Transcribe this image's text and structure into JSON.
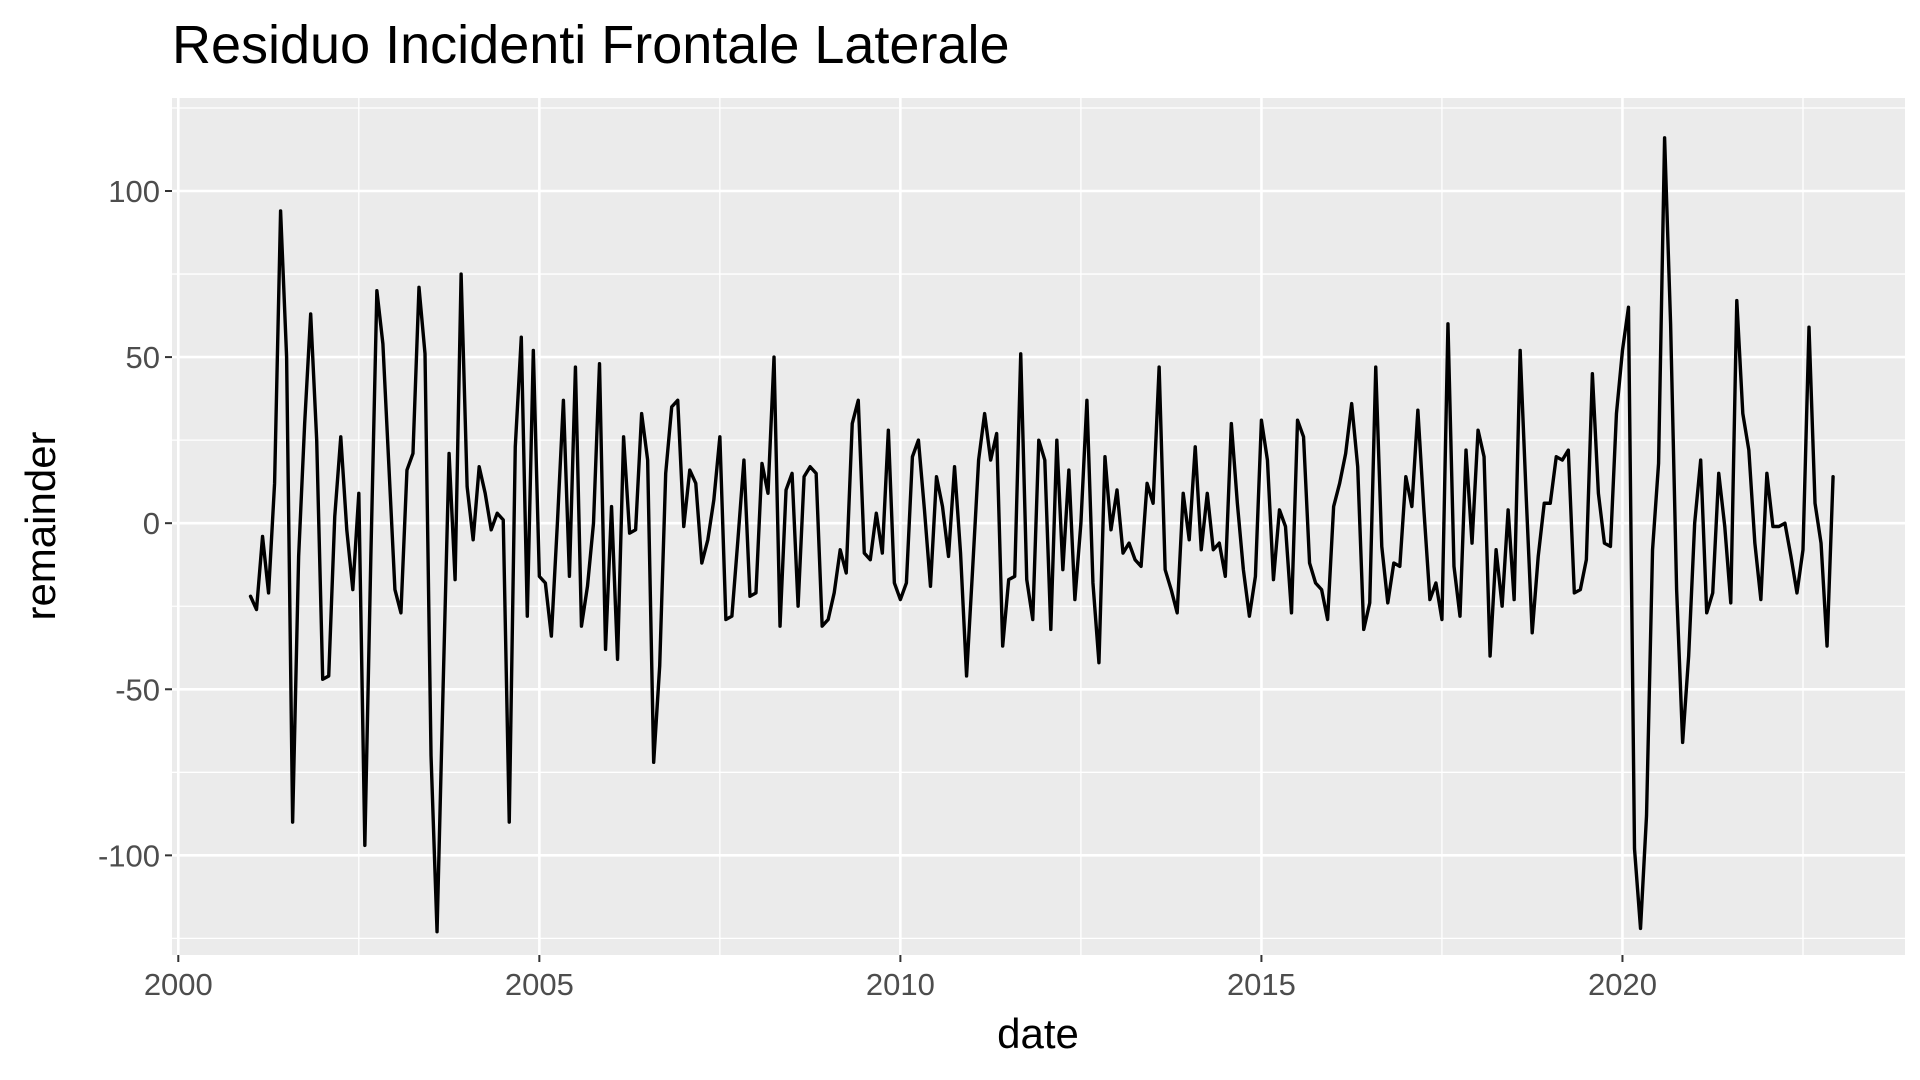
{
  "chart_data": {
    "type": "line",
    "title": "Residuo Incidenti Frontale Laterale",
    "xlabel": "date",
    "ylabel": "remainder",
    "x_axis_type": "date",
    "xlim": [
      "1999-11-30",
      "2023-11-30"
    ],
    "ylim": [
      -130,
      128
    ],
    "x_ticks": [
      "2000",
      "2005",
      "2010",
      "2015",
      "2020"
    ],
    "y_ticks": [
      -100,
      -50,
      0,
      50,
      100
    ],
    "grid": true,
    "legend": "none",
    "colors": {
      "panel_background": "#ebebeb",
      "grid": "#ffffff",
      "line": "#000000",
      "tick_text": "#4d4d4d",
      "tick_mark": "#333333"
    },
    "series": [
      {
        "start": "2001-01",
        "frequency": "monthly",
        "values": [
          -22,
          -26,
          -4,
          -21,
          12,
          94,
          50,
          -90,
          -10,
          30,
          63,
          25,
          -47,
          -46,
          2,
          26,
          -2,
          -20,
          9,
          -97,
          -10,
          70,
          54,
          17,
          -20,
          -27,
          16,
          21,
          71,
          51,
          -70,
          -123,
          -50,
          21,
          -17,
          75,
          11,
          -5,
          17,
          9,
          -2,
          3,
          1,
          -90,
          23,
          56,
          -28,
          52,
          -16,
          -18,
          -34,
          0,
          37,
          -16,
          47,
          -31,
          -19,
          0,
          48,
          -38,
          5,
          -41,
          26,
          -3,
          -2,
          33,
          19,
          -72,
          -43,
          15,
          35,
          37,
          -1,
          16,
          12,
          -12,
          -5,
          7,
          26,
          -29,
          -28,
          -5,
          19,
          -22,
          -21,
          18,
          9,
          50,
          -31,
          10,
          15,
          -25,
          14,
          17,
          15,
          -31,
          -29,
          -21,
          -8,
          -15,
          30,
          37,
          -9,
          -11,
          3,
          -9,
          28,
          -18,
          -23,
          -18,
          20,
          25,
          4,
          -19,
          14,
          5,
          -10,
          17,
          -9,
          -46,
          -14,
          19,
          33,
          19,
          27,
          -37,
          -17,
          -16,
          51,
          -17,
          -29,
          25,
          19,
          -32,
          25,
          -14,
          16,
          -23,
          0,
          37,
          -18,
          -42,
          20,
          -2,
          10,
          -9,
          -6,
          -11,
          -13,
          12,
          6,
          47,
          -14,
          -20,
          -27,
          9,
          -5,
          23,
          -8,
          9,
          -8,
          -6,
          -16,
          30,
          6,
          -14,
          -28,
          -16,
          31,
          19,
          -17,
          4,
          -1,
          -27,
          31,
          26,
          -12,
          -18,
          -20,
          -29,
          5,
          12,
          21,
          36,
          17,
          -32,
          -24,
          47,
          -7,
          -24,
          -12,
          -13,
          14,
          5,
          34,
          4,
          -23,
          -18,
          -29,
          60,
          -13,
          -28,
          22,
          -6,
          28,
          20,
          -40,
          -8,
          -25,
          4,
          -23,
          52,
          8,
          -33,
          -10,
          6,
          6,
          20,
          19,
          22,
          -21,
          -20,
          -11,
          45,
          9,
          -6,
          -7,
          33,
          52,
          65,
          -98,
          -122,
          -88,
          -8,
          18,
          116,
          60,
          -20,
          -66,
          -40,
          0,
          19,
          -27,
          -21,
          15,
          -1,
          -24,
          67,
          33,
          22,
          -6,
          -23,
          15,
          -1,
          -1,
          0,
          -10,
          -21,
          -8,
          59,
          6,
          -6,
          -37,
          14
        ]
      }
    ]
  }
}
